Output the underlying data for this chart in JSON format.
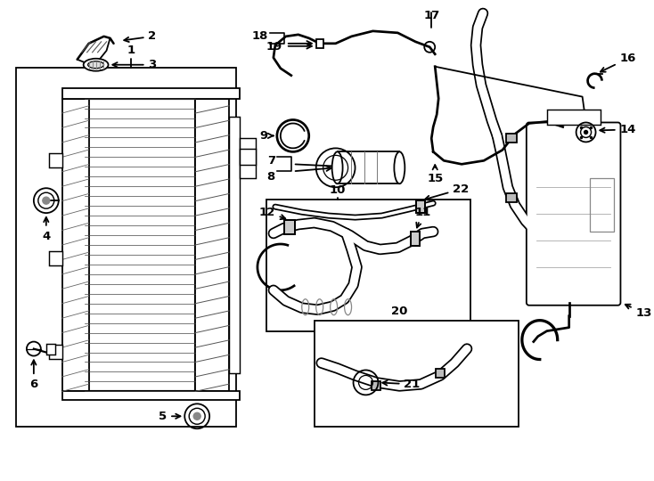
{
  "background_color": "#ffffff",
  "line_color": "#000000",
  "lw": 1.3,
  "fs": 9.5,
  "figsize": [
    7.34,
    5.4
  ],
  "dpi": 100
}
